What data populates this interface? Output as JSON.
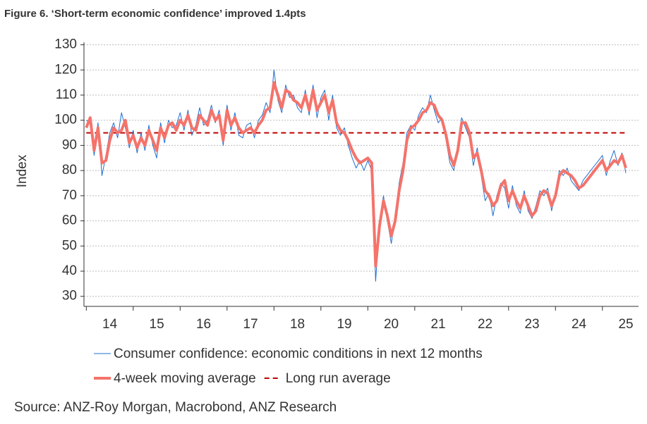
{
  "chart_data": {
    "type": "line",
    "title": "Figure 6. ‘Short-term economic confidence’ improved 1.4pts",
    "y_label": "Index",
    "source": "Source: ANZ-Roy Morgan, Macrobond, ANZ Research",
    "x": [
      14,
      14.083,
      14.167,
      14.25,
      14.333,
      14.417,
      14.5,
      14.583,
      14.667,
      14.75,
      14.833,
      14.917,
      15,
      15.083,
      15.167,
      15.25,
      15.333,
      15.417,
      15.5,
      15.583,
      15.667,
      15.75,
      15.833,
      15.917,
      16,
      16.083,
      16.167,
      16.25,
      16.333,
      16.417,
      16.5,
      16.583,
      16.667,
      16.75,
      16.833,
      16.917,
      17,
      17.083,
      17.167,
      17.25,
      17.333,
      17.417,
      17.5,
      17.583,
      17.667,
      17.75,
      17.833,
      17.917,
      18,
      18.083,
      18.167,
      18.25,
      18.333,
      18.417,
      18.5,
      18.583,
      18.667,
      18.75,
      18.833,
      18.917,
      19,
      19.083,
      19.167,
      19.25,
      19.333,
      19.417,
      19.5,
      19.583,
      19.667,
      19.75,
      19.833,
      19.917,
      20,
      20.083,
      20.167,
      20.25,
      20.333,
      20.417,
      20.5,
      20.583,
      20.667,
      20.75,
      20.833,
      20.917,
      21,
      21.083,
      21.167,
      21.25,
      21.333,
      21.417,
      21.5,
      21.583,
      21.667,
      21.75,
      21.833,
      21.917,
      22,
      22.083,
      22.167,
      22.25,
      22.333,
      22.417,
      22.5,
      22.583,
      22.667,
      22.75,
      22.833,
      22.917,
      23,
      23.083,
      23.167,
      23.25,
      23.333,
      23.417,
      23.5,
      23.583,
      23.667,
      23.75,
      23.833,
      23.917,
      24,
      24.083,
      24.167,
      24.25,
      24.333,
      24.417,
      24.5,
      24.583,
      24.667,
      24.75,
      24.833,
      24.917,
      25,
      25.083,
      25.167,
      25.25,
      25.333,
      25.417,
      25.5
    ],
    "series": [
      {
        "name": "Consumer confidence: economic conditions in next 12 months",
        "color": "#1f6fd1",
        "width": 1,
        "values": [
          100,
          99,
          86,
          99,
          78,
          86,
          95,
          99,
          93,
          103,
          97,
          89,
          96,
          87,
          95,
          88,
          98,
          90,
          85,
          99,
          91,
          100,
          97,
          98,
          103,
          96,
          104,
          94,
          98,
          105,
          98,
          100,
          106,
          99,
          104,
          90,
          106,
          96,
          103,
          94,
          93,
          98,
          99,
          93,
          100,
          102,
          107,
          103,
          120,
          108,
          103,
          114,
          109,
          110,
          105,
          103,
          112,
          102,
          114,
          101,
          109,
          112,
          100,
          110,
          97,
          94,
          97,
          90,
          85,
          81,
          84,
          80,
          84,
          80,
          36,
          60,
          70,
          60,
          51,
          62,
          75,
          83,
          95,
          98,
          96,
          102,
          105,
          103,
          110,
          104,
          99,
          101,
          92,
          83,
          80,
          90,
          101,
          97,
          93,
          82,
          89,
          78,
          68,
          71,
          62,
          70,
          75,
          73,
          65,
          74,
          66,
          63,
          72,
          64,
          61,
          66,
          72,
          70,
          73,
          64,
          71,
          80,
          78,
          81,
          76,
          74,
          72,
          76,
          78,
          80,
          82,
          84,
          86,
          78,
          84,
          88,
          82,
          87,
          79
        ]
      },
      {
        "name": "4-week moving average",
        "color": "#f4736b",
        "width": 4,
        "values": [
          97,
          101,
          88,
          97,
          83,
          84,
          92,
          97,
          95,
          96,
          100,
          91,
          94,
          89,
          93,
          90,
          96,
          92,
          88,
          97,
          93,
          98,
          99,
          96,
          100,
          98,
          102,
          97,
          96,
          102,
          100,
          98,
          104,
          100,
          102,
          92,
          104,
          98,
          101,
          97,
          95,
          96,
          97,
          95,
          98,
          100,
          104,
          105,
          115,
          110,
          105,
          112,
          111,
          108,
          107,
          105,
          110,
          104,
          112,
          104,
          107,
          110,
          103,
          108,
          99,
          96,
          95,
          92,
          88,
          85,
          83,
          84,
          85,
          83,
          42,
          58,
          68,
          62,
          54,
          60,
          72,
          80,
          92,
          97,
          98,
          100,
          103,
          104,
          107,
          106,
          102,
          100,
          94,
          86,
          82,
          88,
          99,
          99,
          95,
          85,
          87,
          80,
          72,
          70,
          66,
          68,
          74,
          76,
          68,
          72,
          68,
          65,
          70,
          66,
          62,
          64,
          70,
          72,
          71,
          66,
          70,
          78,
          80,
          79,
          78,
          76,
          73,
          74,
          76,
          78,
          80,
          82,
          84,
          80,
          82,
          84,
          83,
          86,
          81
        ]
      }
    ],
    "reference_lines": [
      {
        "name": "Long run average",
        "value": 95,
        "color": "#c00000"
      }
    ],
    "xlim": [
      13.95,
      25.77
    ],
    "xticks": [
      {
        "value": 14,
        "label": "14"
      },
      {
        "value": 15,
        "label": "15"
      },
      {
        "value": 16,
        "label": "16"
      },
      {
        "value": 17,
        "label": "17"
      },
      {
        "value": 18,
        "label": "18"
      },
      {
        "value": 19,
        "label": "19"
      },
      {
        "value": 20,
        "label": "20"
      },
      {
        "value": 21,
        "label": "21"
      },
      {
        "value": 22,
        "label": "22"
      },
      {
        "value": 23,
        "label": "23"
      },
      {
        "value": 24,
        "label": "24"
      },
      {
        "value": 25,
        "label": "25"
      }
    ],
    "ylim": [
      26,
      131
    ],
    "yticks": [
      30,
      40,
      50,
      60,
      70,
      80,
      90,
      100,
      110,
      120,
      130
    ],
    "grid": true
  }
}
